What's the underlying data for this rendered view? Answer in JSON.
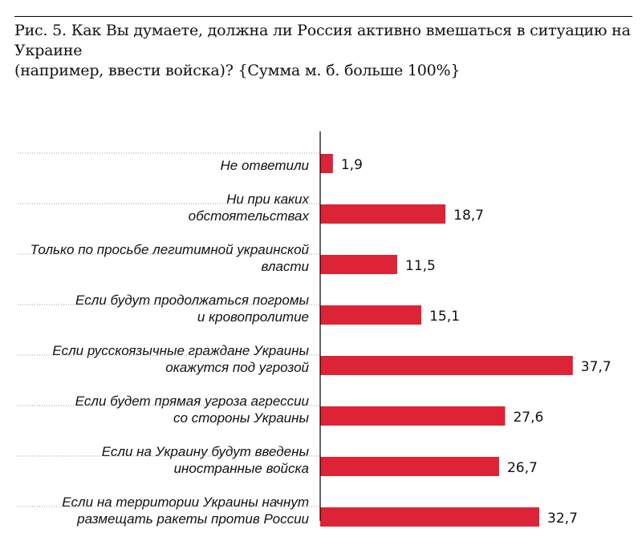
{
  "figure": {
    "title_line1": "Рис. 5. Как Вы думаете, должна ли Россия активно вмешаться в ситуацию на Украине",
    "title_line2": "(например, ввести войска)? {Сумма м. б. больше 100%}"
  },
  "colors": {
    "bar": "#DD2436",
    "axis": "#000000",
    "separator": "#9a9a9a",
    "text": "#111111"
  },
  "chart_data": {
    "type": "bar",
    "orientation": "horizontal",
    "title": "Рис. 5. Как Вы думаете, должна ли Россия активно вмешаться в ситуацию на Украине (например, ввести войска)? {Сумма м. б. больше 100%}",
    "xlabel": "",
    "ylabel": "",
    "xlim": [
      0,
      40
    ],
    "grid": false,
    "categories": [
      [
        "Не ответили"
      ],
      [
        "Ни при каких",
        "обстоятельствах"
      ],
      [
        "Только по просьбе легитимной украинской",
        "власти"
      ],
      [
        "Если будут продолжаться погромы",
        "и кровопролитие"
      ],
      [
        "Если русскоязычные граждане Украины",
        "окажутся под угрозой"
      ],
      [
        "Если будет прямая угроза агрессии",
        "со стороны Украины"
      ],
      [
        "Если на Украину будут введены",
        "иностранные войска"
      ],
      [
        "Если на территории Украины начнут",
        "размещать ракеты против России"
      ]
    ],
    "values": [
      1.9,
      18.7,
      11.5,
      15.1,
      37.7,
      27.6,
      26.7,
      32.7
    ],
    "value_labels": [
      "1,9",
      "18,7",
      "11,5",
      "15,1",
      "37,7",
      "27,6",
      "26,7",
      "32,7"
    ]
  }
}
